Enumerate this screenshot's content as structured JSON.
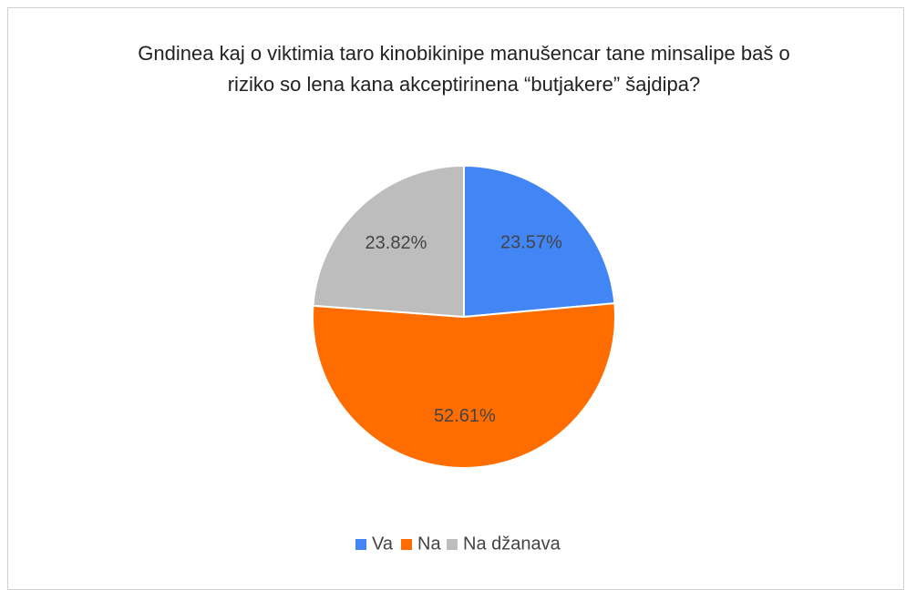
{
  "chart_data": {
    "type": "pie",
    "title": "Gndinea kaj o viktimia taro kinobikinipe manušencar tane minsalipe baš o riziko so lena kana akceptirinena “butjakere” šajdipa?",
    "categories": [
      "Va",
      "Na",
      "Na džanava"
    ],
    "values": [
      23.57,
      52.61,
      23.82
    ],
    "value_labels": [
      "23.57%",
      "52.61%",
      "23.82%"
    ],
    "colors": [
      "#4285f4",
      "#ff6d00",
      "#bdbdbd"
    ],
    "legend": "bottom"
  }
}
